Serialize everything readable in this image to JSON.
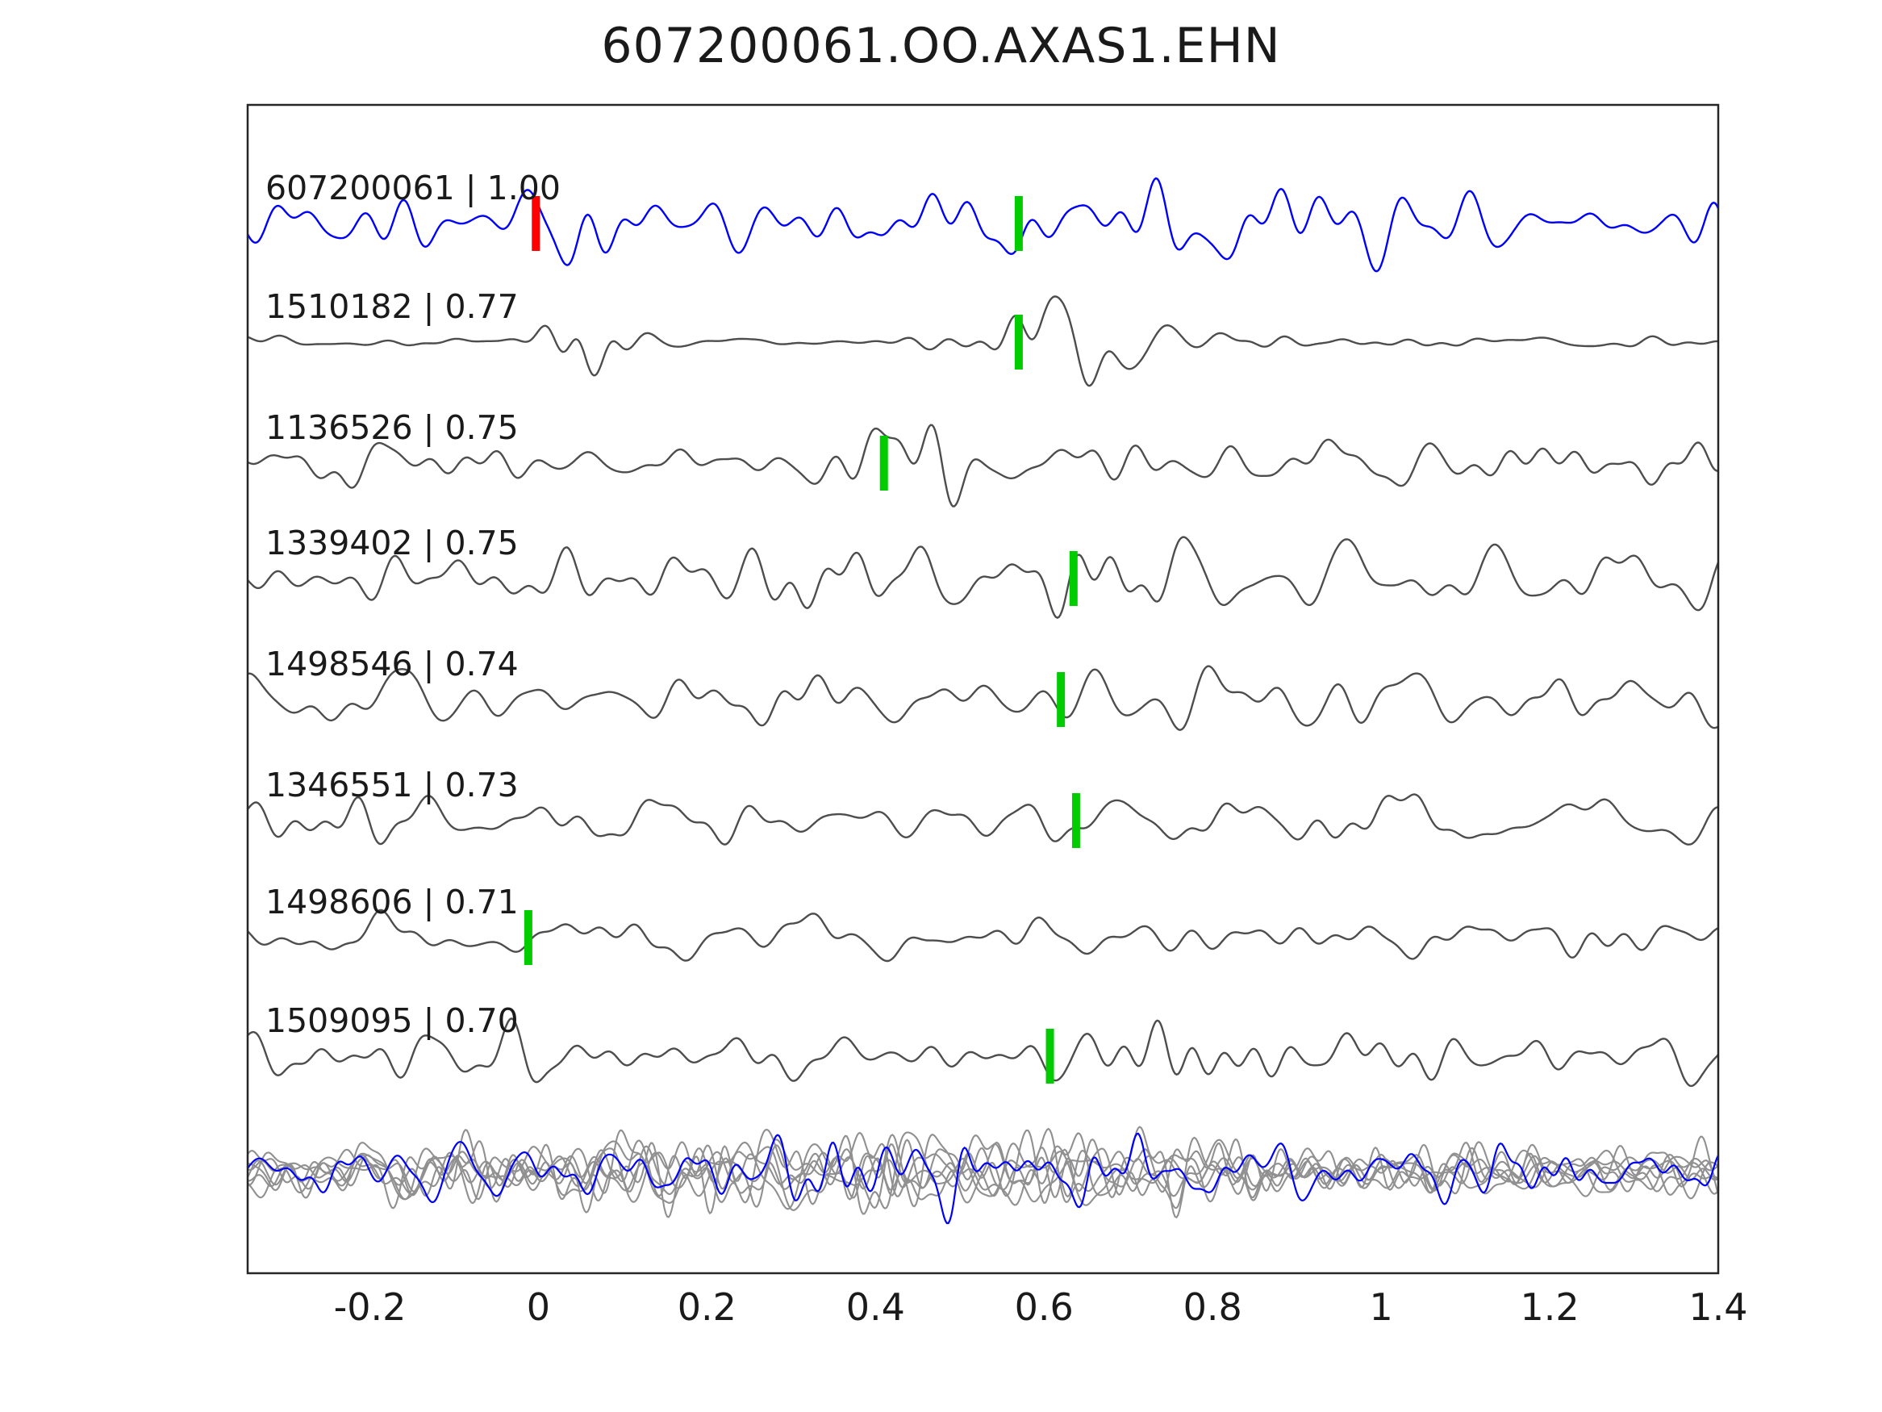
{
  "chart_data": {
    "type": "line",
    "title": "607200061.OO.AXAS1.EHN",
    "xlabel": "",
    "ylabel": "",
    "xlim": [
      -0.345,
      1.4
    ],
    "x_ticks": [
      -0.2,
      0,
      0.2,
      0.4,
      0.6,
      0.8,
      1,
      1.2,
      1.4
    ],
    "x_tick_labels": [
      "-0.2",
      "0",
      "0.2",
      "0.4",
      "0.6",
      "0.8",
      "1",
      "1.2",
      "1.4"
    ],
    "grid": false,
    "legend": false,
    "description": "Template waveform (blue) compared against correlated detection waveforms (gray); green bars mark pick times, red bar marks template pick; all traces overlaid at bottom.",
    "colors": {
      "reference_trace": "#0000ff",
      "match_trace": "#4d4d4d",
      "overlay_trace": "#909090",
      "pick_green": "#00cc00",
      "pick_red": "#ff0000",
      "axis": "#262626",
      "text": "#1a1a1a",
      "background": "#ffffff"
    },
    "traces": [
      {
        "id": "607200061",
        "correlation": "1.00",
        "label": "607200061 | 1.00",
        "color": "#0000ff",
        "picks": [
          {
            "x": -0.003,
            "color": "#ff0000"
          },
          {
            "x": 0.57,
            "color": "#00cc00"
          }
        ],
        "waveform_style": {
          "seed": 11,
          "amp": 34,
          "bursts": [
            [
              0.05,
              0.05,
              1.0
            ],
            [
              0.78,
              0.12,
              0.7
            ]
          ]
        }
      },
      {
        "id": "1510182",
        "correlation": "0.77",
        "label": "1510182 | 0.77",
        "color": "#4d4d4d",
        "picks": [
          {
            "x": 0.57,
            "color": "#00cc00"
          }
        ],
        "waveform_style": {
          "seed": 22,
          "amp": 7,
          "bursts": [
            [
              0.045,
              0.04,
              5.0
            ],
            [
              0.625,
              0.05,
              7.5
            ],
            [
              0.78,
              0.1,
              2.0
            ]
          ]
        }
      },
      {
        "id": "1136526",
        "correlation": "0.75",
        "label": "1136526 | 0.75",
        "color": "#4d4d4d",
        "picks": [
          {
            "x": 0.41,
            "color": "#00cc00"
          }
        ],
        "waveform_style": {
          "seed": 33,
          "amp": 26,
          "bursts": [
            [
              0.45,
              0.06,
              1.6
            ]
          ]
        }
      },
      {
        "id": "1339402",
        "correlation": "0.75",
        "label": "1339402 | 0.75",
        "color": "#4d4d4d",
        "picks": [
          {
            "x": 0.635,
            "color": "#00cc00"
          }
        ],
        "waveform_style": {
          "seed": 44,
          "amp": 36,
          "bursts": [
            [
              0.85,
              0.25,
              0.4
            ]
          ]
        }
      },
      {
        "id": "1498546",
        "correlation": "0.74",
        "label": "1498546 | 0.74",
        "color": "#4d4d4d",
        "picks": [
          {
            "x": 0.62,
            "color": "#00cc00"
          }
        ],
        "waveform_style": {
          "seed": 55,
          "amp": 32,
          "bursts": [
            [
              0.72,
              0.15,
              0.7
            ]
          ]
        }
      },
      {
        "id": "1346551",
        "correlation": "0.73",
        "label": "1346551 | 0.73",
        "color": "#4d4d4d",
        "picks": [
          {
            "x": 0.638,
            "color": "#00cc00"
          }
        ],
        "waveform_style": {
          "seed": 66,
          "amp": 32,
          "bursts": []
        }
      },
      {
        "id": "1498606",
        "correlation": "0.71",
        "label": "1498606 | 0.71",
        "color": "#4d4d4d",
        "picks": [
          {
            "x": -0.012,
            "color": "#00cc00"
          }
        ],
        "waveform_style": {
          "seed": 77,
          "amp": 22,
          "bursts": [
            [
              0.37,
              0.08,
              1.4
            ]
          ]
        }
      },
      {
        "id": "1509095",
        "correlation": "0.70",
        "label": "1509095 | 0.70",
        "color": "#4d4d4d",
        "picks": [
          {
            "x": 0.607,
            "color": "#00cc00"
          }
        ],
        "waveform_style": {
          "seed": 88,
          "amp": 28,
          "bursts": [
            [
              0.78,
              0.1,
              1.2
            ]
          ]
        }
      }
    ],
    "overlay": {
      "note": "all matched traces overlaid with template highlighted",
      "gray_count": 7,
      "gray_color": "#909090",
      "highlight_color": "#0000ff",
      "waveform_style": {
        "amp": 24,
        "bursts": [
          [
            0.4,
            0.45,
            0.9
          ]
        ]
      }
    }
  }
}
